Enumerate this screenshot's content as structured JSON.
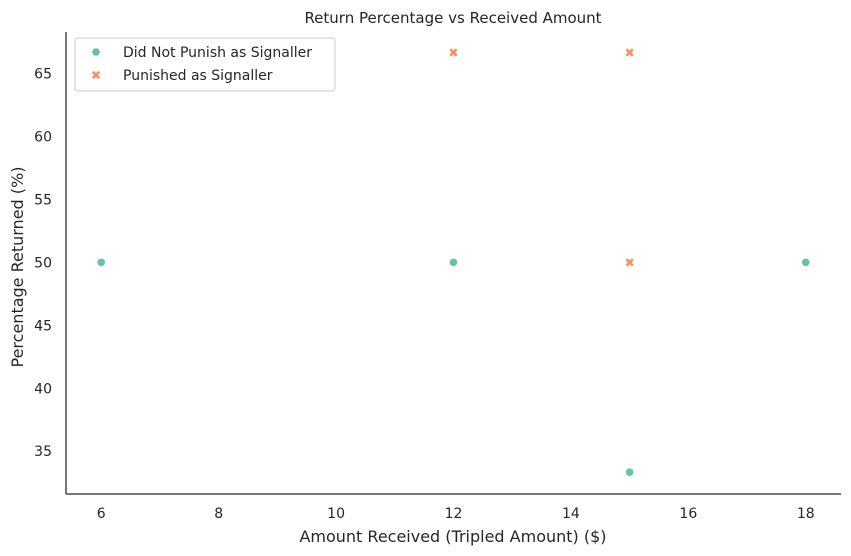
{
  "chart_data": {
    "type": "scatter",
    "title": "Return Percentage vs Received Amount",
    "xlabel": "Amount Received (Tripled Amount) ($)",
    "ylabel": "Percentage Returned (%)",
    "xlim": [
      5.4,
      18.6
    ],
    "ylim": [
      31.6,
      68.3
    ],
    "x_ticks": [
      6,
      8,
      10,
      12,
      14,
      16,
      18
    ],
    "y_ticks": [
      35,
      40,
      45,
      50,
      55,
      60,
      65
    ],
    "grid": false,
    "legend_position": "top-left",
    "series": [
      {
        "name": "Did Not Punish as Signaller",
        "marker": "circle",
        "color": "#66c2a5",
        "points": [
          {
            "x": 6,
            "y": 50
          },
          {
            "x": 12,
            "y": 50
          },
          {
            "x": 15,
            "y": 33.33
          },
          {
            "x": 18,
            "y": 50
          }
        ]
      },
      {
        "name": "Punished as Signaller",
        "marker": "x",
        "color": "#fc8d62",
        "points": [
          {
            "x": 12,
            "y": 66.67
          },
          {
            "x": 15,
            "y": 66.67
          },
          {
            "x": 15,
            "y": 50
          }
        ]
      }
    ]
  }
}
